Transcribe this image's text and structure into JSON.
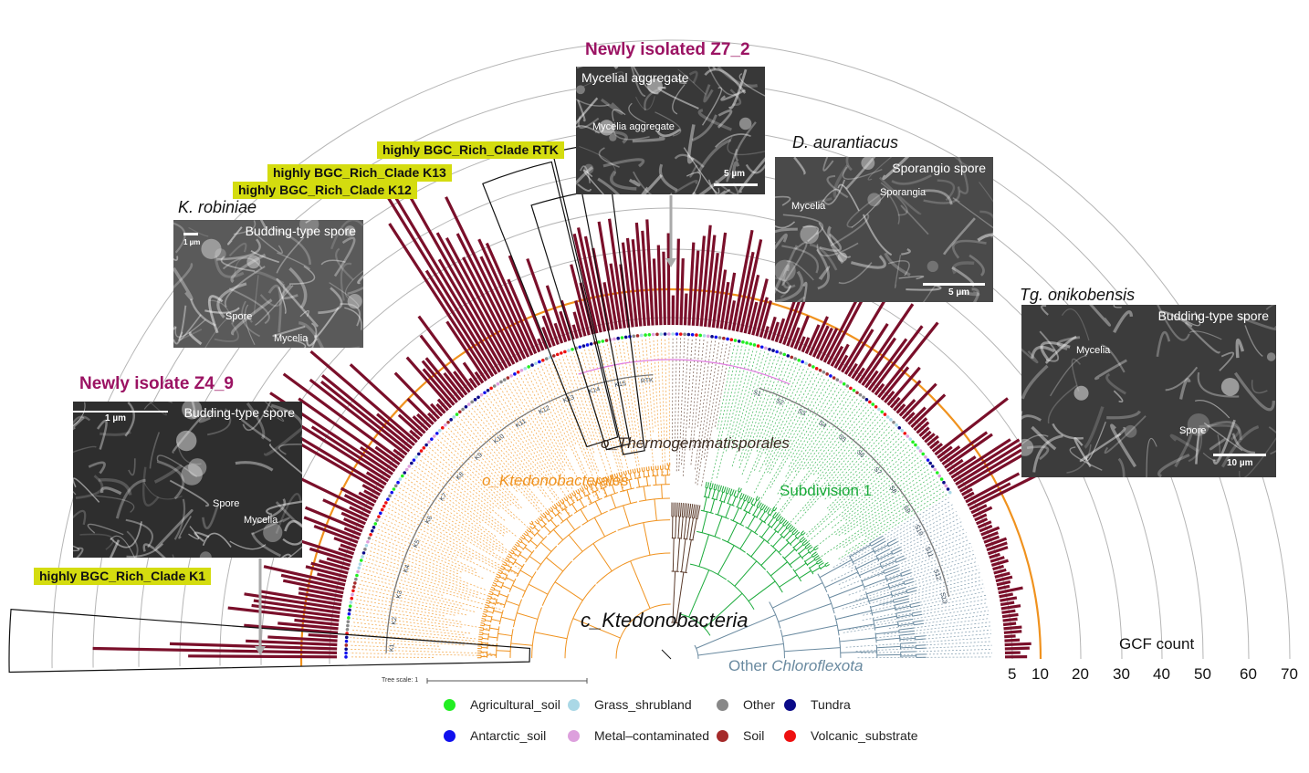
{
  "highlight_tags": {
    "rtk": "highly BGC_Rich_Clade RTK",
    "k13": "highly BGC_Rich_Clade K13",
    "k12": "highly BGC_Rich_Clade K12",
    "k1": "highly BGC_Rich_Clade K1"
  },
  "panels": {
    "z7_2": {
      "title": "Newly isolated Z7_2",
      "caption": "Mycelial aggregate",
      "labels": [
        "Mycelia aggregate"
      ],
      "scale": "5 µm"
    },
    "daur": {
      "title": "D. aurantiacus",
      "caption": "Sporangio spore",
      "labels": [
        "Mycelia",
        "Sporangia"
      ],
      "scale": "5 µm"
    },
    "krob": {
      "title": "K. robiniae",
      "caption": "Budding-type spore",
      "labels": [
        "Spore",
        "Mycelia"
      ],
      "scale": "1 µm"
    },
    "tgoni": {
      "title": "Tg. onikobensis",
      "caption": "Budding-type spore",
      "labels": [
        "Mycelia",
        "Spore"
      ],
      "scale": "10 µm"
    },
    "z4_9": {
      "title": "Newly isolate Z4_9",
      "caption": "Budding-type spore",
      "labels": [
        "Spore",
        "Mycelia"
      ],
      "scale": "1 µm"
    }
  },
  "tree": {
    "class_label": "c_Ktedonobacteria",
    "orders": [
      {
        "name": "o_Ktedonobacterales",
        "color": "#f0921e"
      },
      {
        "name": "o_Thermogemmatisporales",
        "color": "#5a3a2a"
      },
      {
        "name": "Subdivision 1",
        "color": "#1aaa3a"
      },
      {
        "name_plain": "Other ",
        "name_italic": "Chloroflexota",
        "color": "#6a8aa0"
      }
    ],
    "clade_labels": [
      "K1",
      "K2",
      "K3",
      "K4",
      "K5",
      "K6",
      "K7",
      "K8",
      "K9",
      "K10",
      "K11",
      "K12",
      "K13",
      "K14",
      "K15",
      "RTK",
      "S1",
      "S2",
      "S3",
      "S4",
      "S5",
      "S6",
      "S7",
      "S8",
      "S9",
      "S10",
      "S11",
      "S12",
      "S13"
    ],
    "tree_scale": "Tree scale: 1"
  },
  "gcf_axis": {
    "title": "GCF count",
    "ticks": [
      "5",
      "10",
      "20",
      "30",
      "40",
      "50",
      "60",
      "70"
    ],
    "threshold_value": 10,
    "threshold_color": "#f0921e"
  },
  "legend": {
    "items": [
      {
        "label": "Agricultural_soil",
        "color": "#22ee22"
      },
      {
        "label": "Grass_shrubland",
        "color": "#aad8e6"
      },
      {
        "label": "Other",
        "color": "#888888"
      },
      {
        "label": "Tundra",
        "color": "#0a0a88"
      },
      {
        "label": "Antarctic_soil",
        "color": "#1010ee"
      },
      {
        "label": "Metal–contaminated",
        "color": "#dda0dd"
      },
      {
        "label": "Soil",
        "color": "#a52a2a"
      },
      {
        "label": "Volcanic_substrate",
        "color": "#ee1010"
      }
    ]
  },
  "colors": {
    "bar": "#7a0f2a",
    "tag_bg": "#d4dc0f",
    "isolate_title": "#9b1363",
    "ring": "#b0b0b0"
  }
}
